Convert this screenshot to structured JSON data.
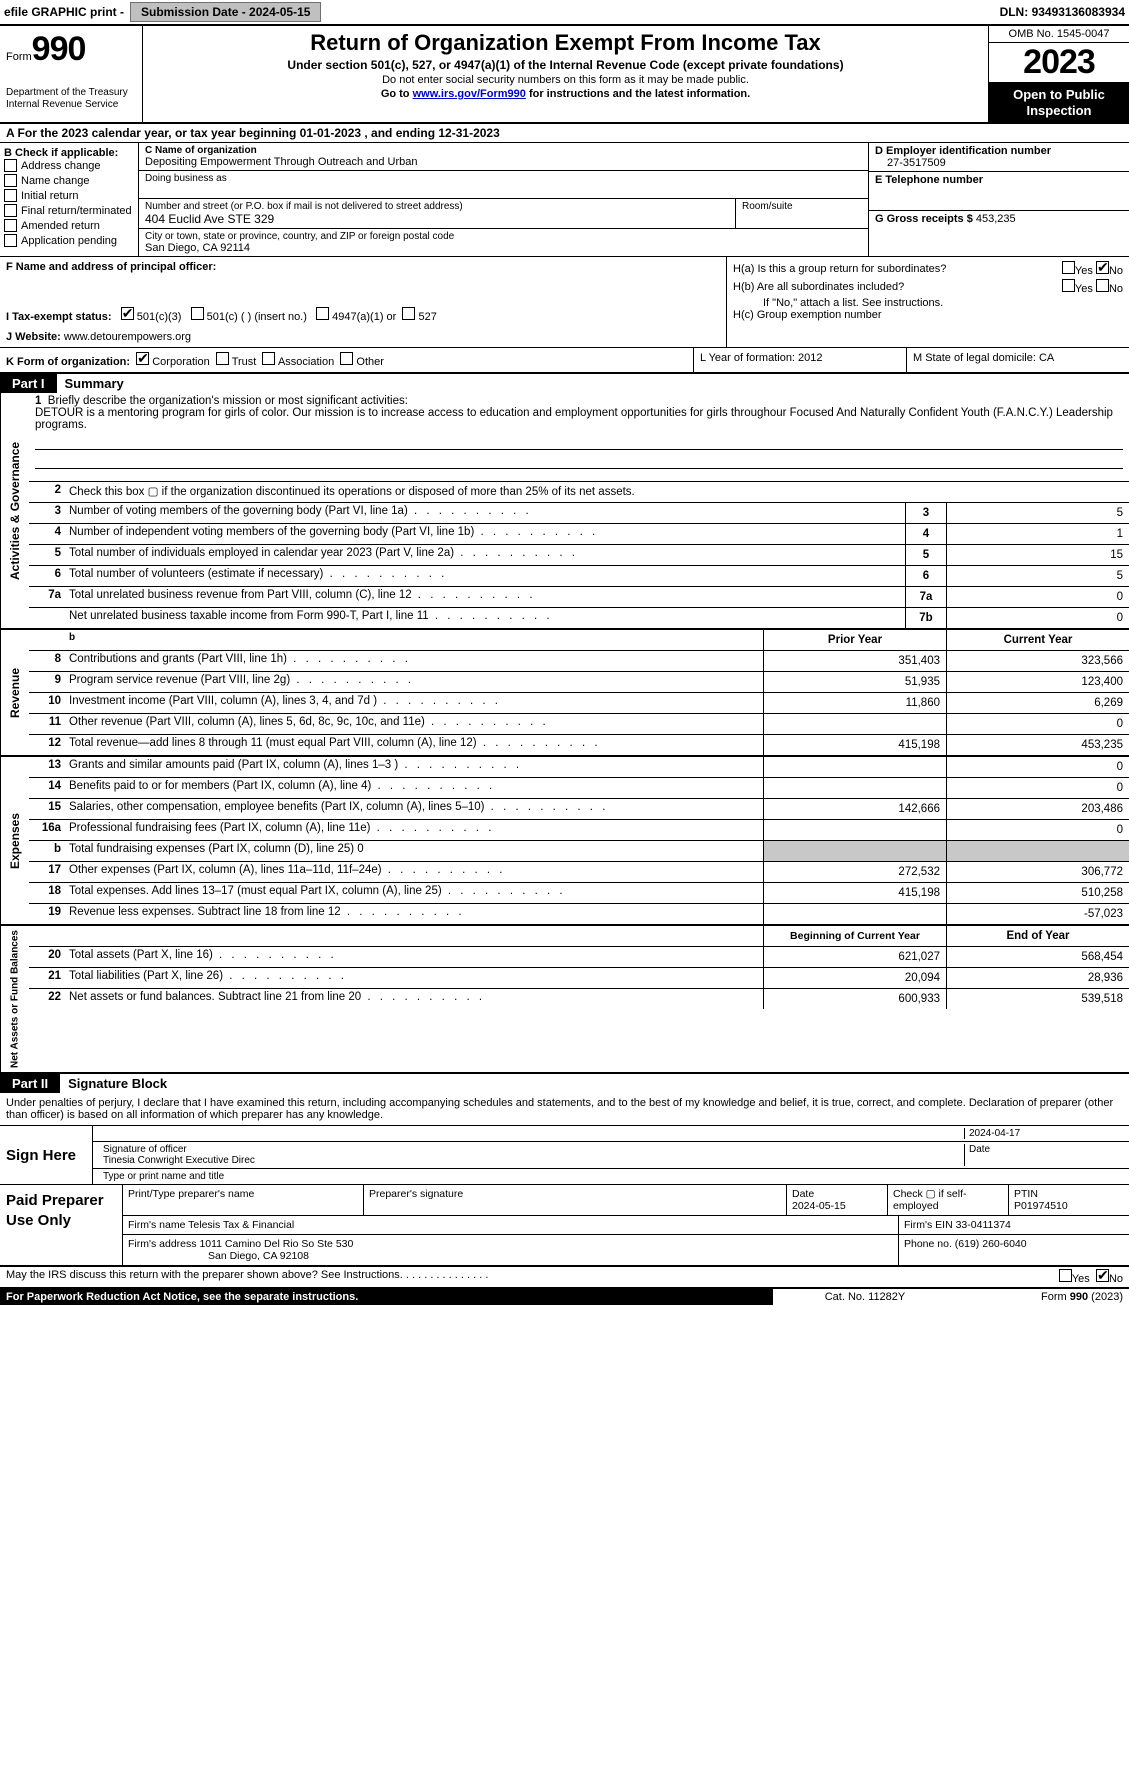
{
  "top": {
    "efile": "efile GRAPHIC print - ",
    "submission_label": "Submission Date - ",
    "submission_date": "2024-05-15",
    "dln_label": "DLN: ",
    "dln": "93493136083934"
  },
  "header": {
    "form_word": "Form",
    "form_no": "990",
    "dept": "Department of the Treasury\nInternal Revenue Service",
    "title": "Return of Organization Exempt From Income Tax",
    "sub": "Under section 501(c), 527, or 4947(a)(1) of the Internal Revenue Code (except private foundations)",
    "small1": "Do not enter social security numbers on this form as it may be made public.",
    "small2_pre": "Go to ",
    "small2_link": "www.irs.gov/Form990",
    "small2_post": " for instructions and the latest information.",
    "omb": "OMB No. 1545-0047",
    "year": "2023",
    "open": "Open to Public Inspection"
  },
  "rowA": "A   For the 2023 calendar year, or tax year beginning 01-01-2023    , and ending 12-31-2023",
  "boxB": {
    "title": "B Check if applicable:",
    "items": [
      "Address change",
      "Name change",
      "Initial return",
      "Final return/terminated",
      "Amended return",
      "Application pending"
    ]
  },
  "boxC": {
    "name_label": "C Name of organization",
    "name": "Depositing Empowerment Through Outreach and Urban",
    "dba_label": "Doing business as",
    "addr_label": "Number and street (or P.O. box if mail is not delivered to street address)",
    "addr": "404 Euclid Ave STE 329",
    "room_label": "Room/suite",
    "city_label": "City or town, state or province, country, and ZIP or foreign postal code",
    "city": "San Diego, CA  92114"
  },
  "boxDE": {
    "d_label": "D Employer identification number",
    "d_val": "27-3517509",
    "e_label": "E Telephone number",
    "g_label": "G Gross receipts $ ",
    "g_val": "453,235"
  },
  "rowF": {
    "label": "F  Name and address of principal officer:"
  },
  "rowI": {
    "label": "I    Tax-exempt status:",
    "opt1": "501(c)(3)",
    "opt2": "501(c) (  ) (insert no.)",
    "opt3": "4947(a)(1) or",
    "opt4": "527"
  },
  "rowJ": {
    "label": "J   Website: ",
    "val": "www.detourempowers.org"
  },
  "rowH": {
    "ha": "H(a)  Is this a group return for subordinates?",
    "hb": "H(b) Are all subordinates included?",
    "hb_note": "If \"No,\" attach a list. See instructions.",
    "hc": "H(c) Group exemption number"
  },
  "rowK": {
    "label": "K Form of organization:",
    "opts": [
      "Corporation",
      "Trust",
      "Association",
      "Other"
    ]
  },
  "rowL": "L Year of formation: 2012",
  "rowM": "M State of legal domicile: CA",
  "part1": {
    "label": "Part I",
    "title": "Summary"
  },
  "mission": {
    "q1_num": "1",
    "q1": "Briefly describe the organization's mission or most significant activities:",
    "q1_text": "DETOUR is a mentoring program for girls of color. Our mission is to increase access to education and employment opportunities for girls throughour Focused And Naturally Confident Youth (F.A.N.C.Y.) Leadership programs."
  },
  "gov_rows": [
    {
      "num": "2",
      "desc": "Check this box ▢ if the organization discontinued its operations or disposed of more than 25% of its net assets."
    },
    {
      "num": "3",
      "desc": "Number of voting members of the governing body (Part VI, line 1a)",
      "box": "3",
      "val": "5"
    },
    {
      "num": "4",
      "desc": "Number of independent voting members of the governing body (Part VI, line 1b)",
      "box": "4",
      "val": "1"
    },
    {
      "num": "5",
      "desc": "Total number of individuals employed in calendar year 2023 (Part V, line 2a)",
      "box": "5",
      "val": "15"
    },
    {
      "num": "6",
      "desc": "Total number of volunteers (estimate if necessary)",
      "box": "6",
      "val": "5"
    },
    {
      "num": "7a",
      "desc": "Total unrelated business revenue from Part VIII, column (C), line 12",
      "box": "7a",
      "val": "0"
    },
    {
      "num": "",
      "desc": "Net unrelated business taxable income from Form 990-T, Part I, line 11",
      "box": "7b",
      "val": "0"
    }
  ],
  "rev_header": {
    "b": "b",
    "prior": "Prior Year",
    "current": "Current Year"
  },
  "rev_rows": [
    {
      "num": "8",
      "desc": "Contributions and grants (Part VIII, line 1h)",
      "prior": "351,403",
      "cur": "323,566"
    },
    {
      "num": "9",
      "desc": "Program service revenue (Part VIII, line 2g)",
      "prior": "51,935",
      "cur": "123,400"
    },
    {
      "num": "10",
      "desc": "Investment income (Part VIII, column (A), lines 3, 4, and 7d )",
      "prior": "11,860",
      "cur": "6,269"
    },
    {
      "num": "11",
      "desc": "Other revenue (Part VIII, column (A), lines 5, 6d, 8c, 9c, 10c, and 11e)",
      "prior": "",
      "cur": "0"
    },
    {
      "num": "12",
      "desc": "Total revenue—add lines 8 through 11 (must equal Part VIII, column (A), line 12)",
      "prior": "415,198",
      "cur": "453,235"
    }
  ],
  "exp_rows": [
    {
      "num": "13",
      "desc": "Grants and similar amounts paid (Part IX, column (A), lines 1–3 )",
      "prior": "",
      "cur": "0"
    },
    {
      "num": "14",
      "desc": "Benefits paid to or for members (Part IX, column (A), line 4)",
      "prior": "",
      "cur": "0"
    },
    {
      "num": "15",
      "desc": "Salaries, other compensation, employee benefits (Part IX, column (A), lines 5–10)",
      "prior": "142,666",
      "cur": "203,486"
    },
    {
      "num": "16a",
      "desc": "Professional fundraising fees (Part IX, column (A), line 11e)",
      "prior": "",
      "cur": "0"
    },
    {
      "num": "b",
      "desc": "Total fundraising expenses (Part IX, column (D), line 25) 0",
      "prior": "shade",
      "cur": "shade"
    },
    {
      "num": "17",
      "desc": "Other expenses (Part IX, column (A), lines 11a–11d, 11f–24e)",
      "prior": "272,532",
      "cur": "306,772"
    },
    {
      "num": "18",
      "desc": "Total expenses. Add lines 13–17 (must equal Part IX, column (A), line 25)",
      "prior": "415,198",
      "cur": "510,258"
    },
    {
      "num": "19",
      "desc": "Revenue less expenses. Subtract line 18 from line 12",
      "prior": "",
      "cur": "-57,023"
    }
  ],
  "net_header": {
    "prior": "Beginning of Current Year",
    "cur": "End of Year"
  },
  "net_rows": [
    {
      "num": "20",
      "desc": "Total assets (Part X, line 16)",
      "prior": "621,027",
      "cur": "568,454"
    },
    {
      "num": "21",
      "desc": "Total liabilities (Part X, line 26)",
      "prior": "20,094",
      "cur": "28,936"
    },
    {
      "num": "22",
      "desc": "Net assets or fund balances. Subtract line 21 from line 20",
      "prior": "600,933",
      "cur": "539,518"
    }
  ],
  "vtabs": {
    "gov": "Activities & Governance",
    "rev": "Revenue",
    "exp": "Expenses",
    "net": "Net Assets or Fund Balances"
  },
  "part2": {
    "label": "Part II",
    "title": "Signature Block"
  },
  "sig_text": "Under penalties of perjury, I declare that I have examined this return, including accompanying schedules and statements, and to the best of my knowledge and belief, it is true, correct, and complete. Declaration of preparer (other than officer) is based on all information of which preparer has any knowledge.",
  "sign": {
    "here": "Sign Here",
    "date": "2024-04-17",
    "sig_label": "Signature of officer",
    "officer": "Tinesia Conwright Executive Direc",
    "type_label": "Type or print name and title"
  },
  "prep": {
    "label": "Paid Preparer Use Only",
    "name_label": "Print/Type preparer's name",
    "sig_label": "Preparer's signature",
    "date_label": "Date",
    "date": "2024-05-15",
    "check_label": "Check ▢ if self-employed",
    "ptin_label": "PTIN",
    "ptin": "P01974510",
    "firm_name_label": "Firm's name   ",
    "firm_name": "Telesis Tax & Financial",
    "firm_ein_label": "Firm's EIN  ",
    "firm_ein": "33-0411374",
    "firm_addr_label": "Firm's address ",
    "firm_addr": "1011 Camino Del Rio So Ste 530",
    "firm_city": "San Diego, CA  92108",
    "phone_label": "Phone no. ",
    "phone": "(619) 260-6040"
  },
  "discuss": "May the IRS discuss this return with the preparer shown above? See Instructions.",
  "footer": {
    "left": "For Paperwork Reduction Act Notice, see the separate instructions.",
    "mid": "Cat. No. 11282Y",
    "right": "Form 990 (2023)"
  },
  "yesno": {
    "yes": "Yes",
    "no": "No"
  }
}
